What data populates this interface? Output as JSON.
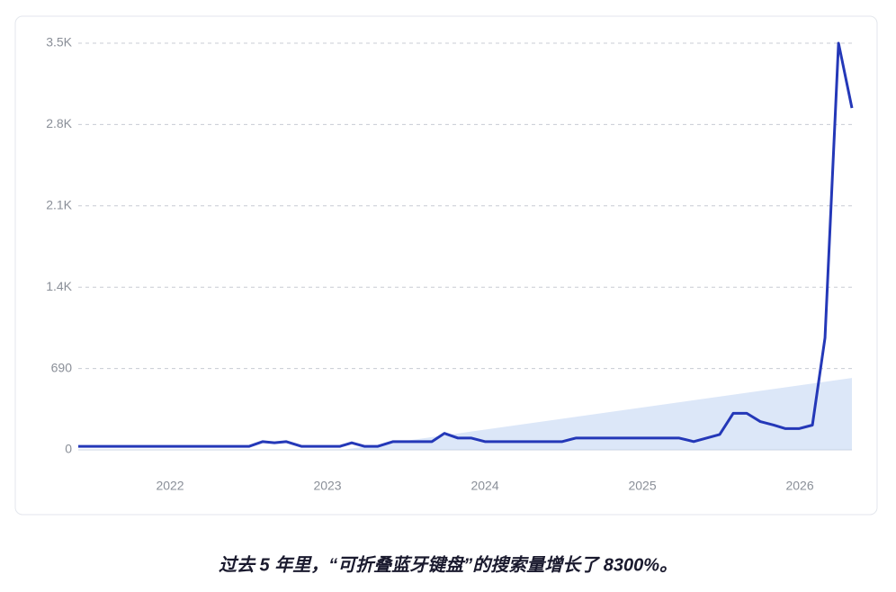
{
  "caption": "过去 5 年里，“可折叠蓝牙键盘”的搜索量增长了 8300%。",
  "chart_data": {
    "type": "line",
    "x": [
      2021.417,
      2022.503,
      2022.589,
      2022.663,
      2022.737,
      2022.834,
      2023.08,
      2023.154,
      2023.234,
      2023.32,
      2023.417,
      2023.663,
      2023.743,
      2023.829,
      2023.914,
      2024.0,
      2024.491,
      2024.577,
      2025.234,
      2025.326,
      2025.491,
      2025.577,
      2025.663,
      2025.749,
      2025.834,
      2025.909,
      2025.994,
      2026.08,
      2026.16,
      2026.246,
      2026.331
    ],
    "series": [
      {
        "color": "#2438b8",
        "values": [
          30,
          30,
          70,
          60,
          70,
          30,
          30,
          60,
          30,
          30,
          70,
          70,
          140,
          100,
          100,
          70,
          70,
          100,
          100,
          70,
          130,
          310,
          310,
          240,
          210,
          180,
          180,
          210,
          950,
          3450,
          2900
        ]
      }
    ],
    "trend": {
      "x": [
        2023.09,
        2026.331
      ],
      "values": [
        0,
        610
      ],
      "color": "#dce7f8"
    },
    "xlim": [
      2021.417,
      2026.331
    ],
    "xticks": [
      2022,
      2023,
      2024,
      2025,
      2026
    ],
    "ylim": [
      0,
      3450
    ],
    "yticks": [
      0,
      690,
      {
        "value": 1380,
        "label": "1.4K"
      },
      {
        "value": 2070,
        "label": "2.1K"
      },
      {
        "value": 2760,
        "label": "2.8K"
      },
      {
        "value": 3450,
        "label": "3.5K"
      }
    ],
    "grid": true
  }
}
